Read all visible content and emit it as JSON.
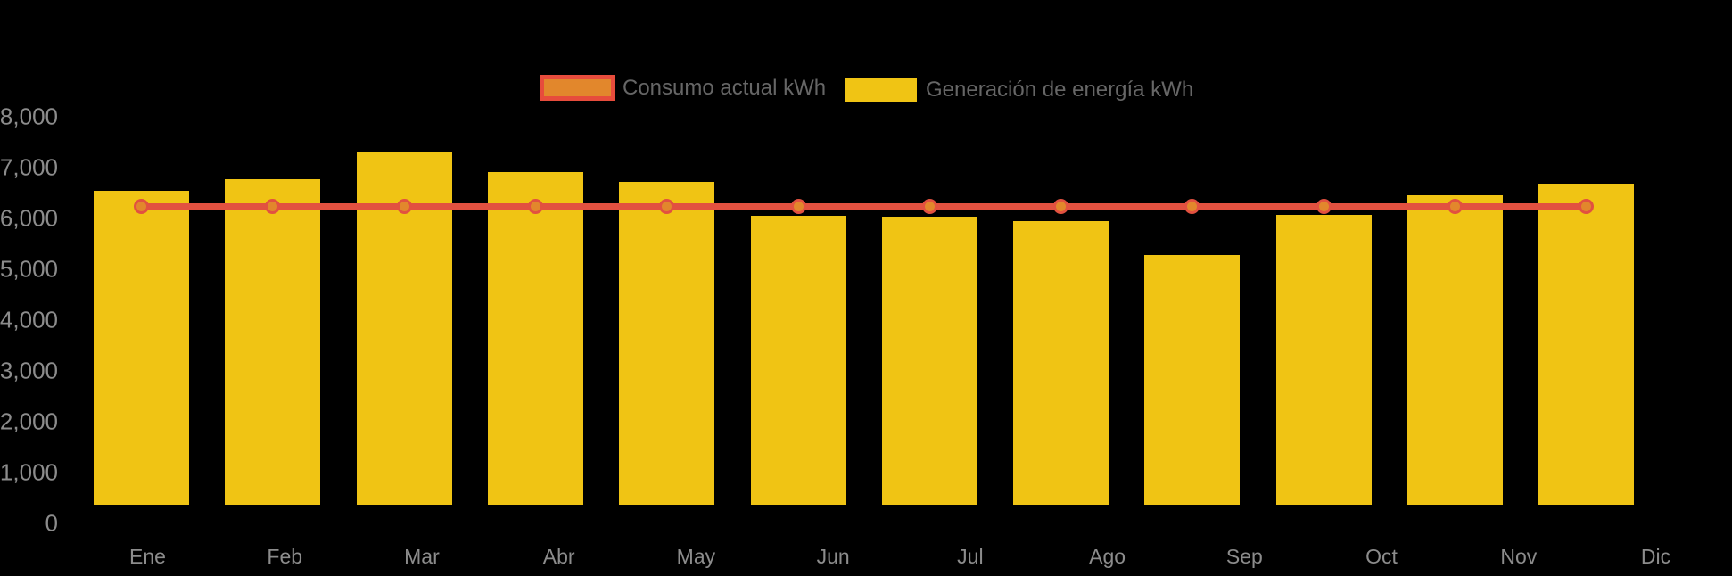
{
  "chart_data": {
    "type": "bar",
    "title": "",
    "xlabel": "",
    "ylabel": "",
    "categories": [
      "Ene",
      "Feb",
      "Mar",
      "Abr",
      "May",
      "Jun",
      "Jul",
      "Ago",
      "Sep",
      "Oct",
      "Nov",
      "Dic"
    ],
    "series": [
      {
        "name": "Consumo actual kWh",
        "type": "line",
        "color": "#E25140",
        "point_fill": "#E2872C",
        "values": [
          6250,
          6250,
          6250,
          6250,
          6250,
          6250,
          6250,
          6250,
          6250,
          6250,
          6250,
          6250
        ]
      },
      {
        "name": "Generación de energía kWh",
        "type": "bar",
        "color": "#F0C414",
        "values": [
          6550,
          6770,
          7320,
          6920,
          6720,
          6050,
          6040,
          5960,
          5280,
          6080,
          6470,
          6690
        ]
      }
    ],
    "y_ticks": [
      "8,000",
      "7,000",
      "6,000",
      "5,000",
      "4,000",
      "3,000",
      "2,000",
      "1,000",
      "0"
    ],
    "ylim": [
      0,
      8000
    ],
    "grid": false,
    "legend_position": "top",
    "background": "#000000",
    "axis_label_color": "#8C8C8C",
    "legend_text_color": "#666666",
    "legend_swatch_border": "#E74C3C"
  }
}
